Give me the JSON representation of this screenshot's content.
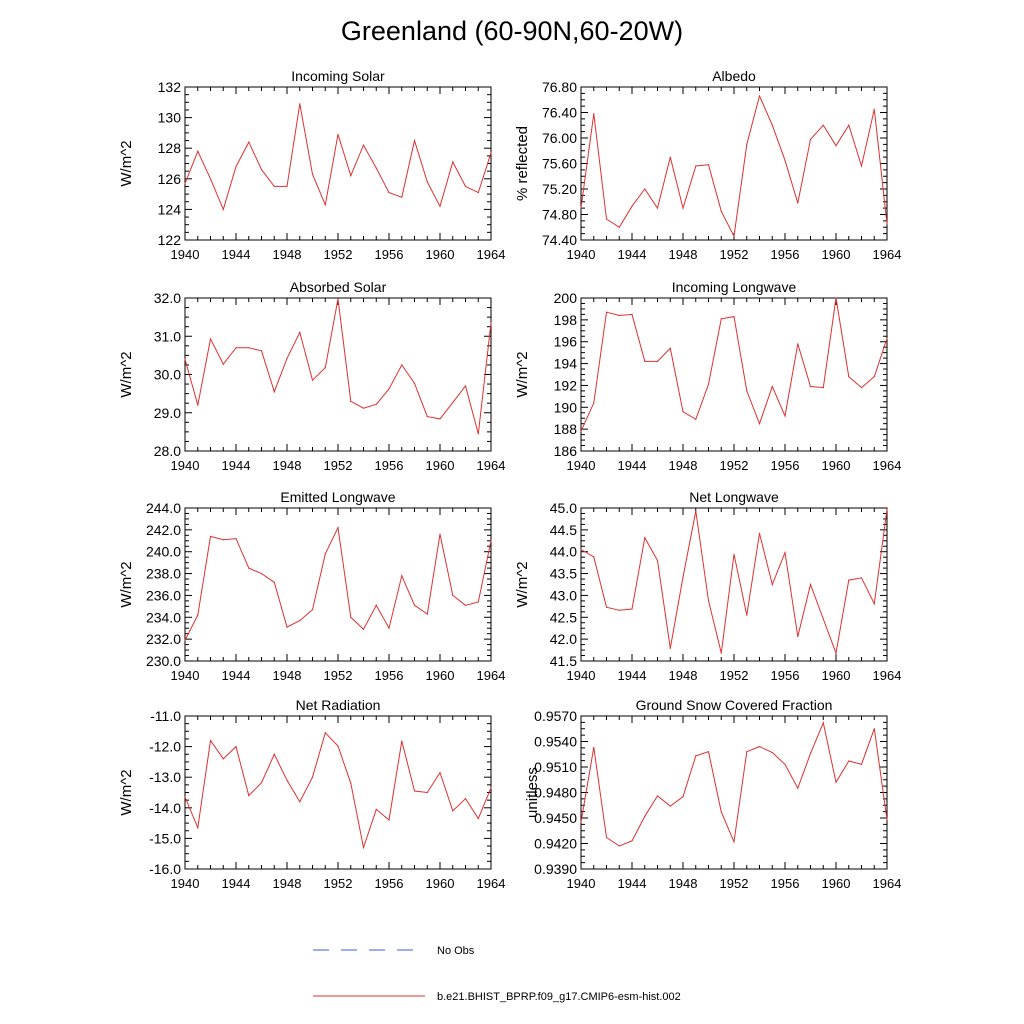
{
  "figure": {
    "title": "Greenland (60-90N,60-20W)",
    "legend": [
      {
        "label": "No Obs",
        "style": "dashed",
        "color": "#3b5bdb"
      },
      {
        "label": "b.e21.BHIST_BPRP.f09_g17.CMIP6-esm-hist.002",
        "style": "solid",
        "color": "#e03030"
      }
    ]
  },
  "chart_data": [
    {
      "type": "line",
      "title": "Incoming Solar",
      "ylabel": "W/m^2",
      "xlim": [
        1940,
        1964
      ],
      "ylim": [
        122,
        132
      ],
      "x_ticks": [
        "1940",
        "1944",
        "1948",
        "1952",
        "1956",
        "1960",
        "1964"
      ],
      "y_ticks": [
        "122",
        "124",
        "126",
        "128",
        "130",
        "132"
      ],
      "y_tick_values": [
        122,
        124,
        126,
        128,
        130,
        132
      ],
      "ylabel_side": "left",
      "series": [
        {
          "color": "#e03030",
          "x": [
            1940,
            1941,
            1942,
            1943,
            1944,
            1945,
            1946,
            1947,
            1948,
            1949,
            1950,
            1951,
            1952,
            1953,
            1954,
            1955,
            1956,
            1957,
            1958,
            1959,
            1960,
            1961,
            1962,
            1963,
            1964
          ],
          "values": [
            125.7,
            127.8,
            126.0,
            124.0,
            126.8,
            128.4,
            126.6,
            125.5,
            125.5,
            130.9,
            126.3,
            124.3,
            128.9,
            126.2,
            128.2,
            126.7,
            125.1,
            124.8,
            128.5,
            125.8,
            124.2,
            127.1,
            125.5,
            125.1,
            127.7
          ]
        }
      ]
    },
    {
      "type": "line",
      "title": "Albedo",
      "ylabel": "% reflected",
      "xlim": [
        1940,
        1964
      ],
      "ylim": [
        74.4,
        76.8
      ],
      "x_ticks": [
        "1940",
        "1944",
        "1948",
        "1952",
        "1956",
        "1960",
        "1964"
      ],
      "y_ticks": [
        "74.40",
        "74.80",
        "75.20",
        "75.60",
        "76.00",
        "76.40",
        "76.80"
      ],
      "y_tick_values": [
        74.4,
        74.8,
        75.2,
        75.6,
        76.0,
        76.4,
        76.8
      ],
      "ylabel_side": "left",
      "series": [
        {
          "color": "#e03030",
          "x": [
            1940,
            1941,
            1942,
            1943,
            1944,
            1945,
            1946,
            1947,
            1948,
            1949,
            1950,
            1951,
            1952,
            1953,
            1954,
            1955,
            1956,
            1957,
            1958,
            1959,
            1960,
            1961,
            1962,
            1963,
            1964
          ],
          "values": [
            74.9,
            76.38,
            74.73,
            74.6,
            74.93,
            75.2,
            74.9,
            75.7,
            74.9,
            75.56,
            75.58,
            74.85,
            74.46,
            75.9,
            76.66,
            76.2,
            75.65,
            74.98,
            75.98,
            76.2,
            75.88,
            76.2,
            75.56,
            76.45,
            74.65
          ]
        }
      ]
    },
    {
      "type": "line",
      "title": "Absorbed Solar",
      "ylabel": "W/m^2",
      "xlim": [
        1940,
        1964
      ],
      "ylim": [
        28.0,
        32.0
      ],
      "x_ticks": [
        "1940",
        "1944",
        "1948",
        "1952",
        "1956",
        "1960",
        "1964"
      ],
      "y_ticks": [
        "28.0",
        "29.0",
        "30.0",
        "31.0",
        "32.0"
      ],
      "y_tick_values": [
        28,
        29,
        30,
        31,
        32
      ],
      "ylabel_side": "left",
      "series": [
        {
          "color": "#e03030",
          "x": [
            1940,
            1941,
            1942,
            1943,
            1944,
            1945,
            1946,
            1947,
            1948,
            1949,
            1950,
            1951,
            1952,
            1953,
            1954,
            1955,
            1956,
            1957,
            1958,
            1959,
            1960,
            1961,
            1962,
            1963,
            1964
          ],
          "values": [
            30.4,
            29.2,
            30.93,
            30.27,
            30.7,
            30.7,
            30.62,
            29.55,
            30.42,
            31.1,
            29.85,
            30.18,
            31.98,
            29.3,
            29.12,
            29.22,
            29.62,
            30.25,
            29.77,
            28.9,
            28.84,
            29.27,
            29.7,
            28.45,
            31.35
          ]
        }
      ]
    },
    {
      "type": "line",
      "title": "Incoming Longwave",
      "ylabel": "W/m^2",
      "xlim": [
        1940,
        1964
      ],
      "ylim": [
        186,
        200
      ],
      "x_ticks": [
        "1940",
        "1944",
        "1948",
        "1952",
        "1956",
        "1960",
        "1964"
      ],
      "y_ticks": [
        "186",
        "188",
        "190",
        "192",
        "194",
        "196",
        "198",
        "200"
      ],
      "y_tick_values": [
        186,
        188,
        190,
        192,
        194,
        196,
        198,
        200
      ],
      "ylabel_side": "left",
      "series": [
        {
          "color": "#e03030",
          "x": [
            1940,
            1941,
            1942,
            1943,
            1944,
            1945,
            1946,
            1947,
            1948,
            1949,
            1950,
            1951,
            1952,
            1953,
            1954,
            1955,
            1956,
            1957,
            1958,
            1959,
            1960,
            1961,
            1962,
            1963,
            1964
          ],
          "values": [
            187.8,
            190.4,
            198.7,
            198.4,
            198.5,
            194.2,
            194.2,
            195.4,
            189.6,
            188.9,
            192.1,
            198.1,
            198.3,
            191.5,
            188.5,
            191.9,
            189.2,
            195.8,
            191.9,
            191.8,
            200.0,
            192.8,
            191.8,
            192.8,
            196.3
          ]
        }
      ]
    },
    {
      "type": "line",
      "title": "Emitted Longwave",
      "ylabel": "W/m^2",
      "xlim": [
        1940,
        1964
      ],
      "ylim": [
        230.0,
        244.0
      ],
      "x_ticks": [
        "1940",
        "1944",
        "1948",
        "1952",
        "1956",
        "1960",
        "1964"
      ],
      "y_ticks": [
        "230.0",
        "232.0",
        "234.0",
        "236.0",
        "238.0",
        "240.0",
        "242.0",
        "244.0"
      ],
      "y_tick_values": [
        230,
        232,
        234,
        236,
        238,
        240,
        242,
        244
      ],
      "ylabel_side": "left",
      "series": [
        {
          "color": "#e03030",
          "x": [
            1940,
            1941,
            1942,
            1943,
            1944,
            1945,
            1946,
            1947,
            1948,
            1949,
            1950,
            1951,
            1952,
            1953,
            1954,
            1955,
            1956,
            1957,
            1958,
            1959,
            1960,
            1961,
            1962,
            1963,
            1964
          ],
          "values": [
            231.9,
            234.2,
            241.4,
            241.1,
            241.2,
            238.5,
            238.0,
            237.2,
            233.1,
            233.7,
            234.7,
            239.8,
            242.2,
            234.0,
            232.9,
            235.1,
            233.0,
            237.8,
            235.1,
            234.3,
            241.6,
            236.0,
            235.1,
            235.4,
            241.0
          ]
        }
      ]
    },
    {
      "type": "line",
      "title": "Net Longwave",
      "ylabel": "W/m^2",
      "xlim": [
        1940,
        1964
      ],
      "ylim": [
        41.5,
        45.0
      ],
      "x_ticks": [
        "1940",
        "1944",
        "1948",
        "1952",
        "1956",
        "1960",
        "1964"
      ],
      "y_ticks": [
        "41.5",
        "42.0",
        "42.5",
        "43.0",
        "43.5",
        "44.0",
        "44.5",
        "45.0"
      ],
      "y_tick_values": [
        41.5,
        42,
        42.5,
        43,
        43.5,
        44,
        44.5,
        45
      ],
      "ylabel_side": "left",
      "series": [
        {
          "color": "#e03030",
          "x": [
            1940,
            1941,
            1942,
            1943,
            1944,
            1945,
            1946,
            1947,
            1948,
            1949,
            1950,
            1951,
            1952,
            1953,
            1954,
            1955,
            1956,
            1957,
            1958,
            1959,
            1960,
            1961,
            1962,
            1963,
            1964
          ],
          "values": [
            44.05,
            43.88,
            42.73,
            42.66,
            42.69,
            44.32,
            43.8,
            41.79,
            43.42,
            44.93,
            42.88,
            41.68,
            43.94,
            42.55,
            44.42,
            43.25,
            43.98,
            42.06,
            43.25,
            42.46,
            41.68,
            43.35,
            43.4,
            42.81,
            44.97
          ]
        }
      ]
    },
    {
      "type": "line",
      "title": "Net Radiation",
      "ylabel": "W/m^2",
      "xlim": [
        1940,
        1964
      ],
      "ylim": [
        -16.0,
        -11.0
      ],
      "x_ticks": [
        "1940",
        "1944",
        "1948",
        "1952",
        "1956",
        "1960",
        "1964"
      ],
      "y_ticks": [
        "-16.0",
        "-15.0",
        "-14.0",
        "-13.0",
        "-12.0",
        "-11.0"
      ],
      "y_tick_values": [
        -16,
        -15,
        -14,
        -13,
        -12,
        -11
      ],
      "ylabel_side": "left",
      "series": [
        {
          "color": "#e03030",
          "x": [
            1940,
            1941,
            1942,
            1943,
            1944,
            1945,
            1946,
            1947,
            1948,
            1949,
            1950,
            1951,
            1952,
            1953,
            1954,
            1955,
            1956,
            1957,
            1958,
            1959,
            1960,
            1961,
            1962,
            1963,
            1964
          ],
          "values": [
            -13.65,
            -14.65,
            -11.8,
            -12.4,
            -12.0,
            -13.6,
            -13.18,
            -12.25,
            -13.1,
            -13.8,
            -13.0,
            -11.55,
            -11.98,
            -13.2,
            -15.3,
            -14.05,
            -14.4,
            -11.82,
            -13.45,
            -13.5,
            -12.85,
            -14.1,
            -13.7,
            -14.35,
            -13.35
          ]
        }
      ]
    },
    {
      "type": "line",
      "title": "Ground Snow Covered Fraction",
      "ylabel": "unitless",
      "xlim": [
        1940,
        1964
      ],
      "ylim": [
        0.939,
        0.957
      ],
      "x_ticks": [
        "1940",
        "1944",
        "1948",
        "1952",
        "1956",
        "1960",
        "1964"
      ],
      "y_ticks": [
        "0.9390",
        "0.9420",
        "0.9450",
        "0.9480",
        "0.9510",
        "0.9540",
        "0.9570"
      ],
      "y_tick_values": [
        0.939,
        0.942,
        0.945,
        0.948,
        0.951,
        0.954,
        0.957
      ],
      "ylabel_side": "right",
      "series": [
        {
          "color": "#e03030",
          "x": [
            1940,
            1941,
            1942,
            1943,
            1944,
            1945,
            1946,
            1947,
            1948,
            1949,
            1950,
            1951,
            1952,
            1953,
            1954,
            1955,
            1956,
            1957,
            1958,
            1959,
            1960,
            1961,
            1962,
            1963,
            1964
          ],
          "values": [
            0.9445,
            0.9533,
            0.9427,
            0.9417,
            0.9423,
            0.9452,
            0.9476,
            0.9464,
            0.9475,
            0.9523,
            0.9528,
            0.9457,
            0.9422,
            0.9528,
            0.9534,
            0.9527,
            0.9513,
            0.9485,
            0.9526,
            0.9562,
            0.9492,
            0.9517,
            0.9513,
            0.9555,
            0.9448
          ]
        }
      ]
    }
  ]
}
